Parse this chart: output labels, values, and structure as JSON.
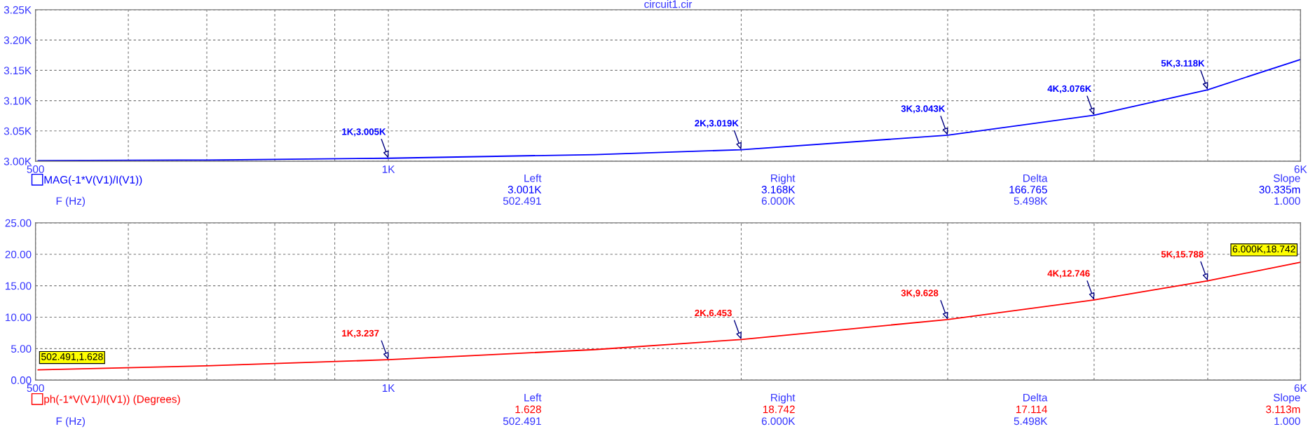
{
  "chart_data": [
    {
      "type": "line",
      "title": "circuit1.cir",
      "log": "x",
      "grid": true,
      "legend": "bottom left",
      "line_style": "solid",
      "marker": "none",
      "x": [
        502.491,
        700,
        1000,
        1500,
        2000,
        3000,
        4000,
        5000,
        6000
      ],
      "series": [
        {
          "name": "MAG(-1*V(V1)/I(V1))",
          "color": "#0000ff",
          "values": [
            3001,
            3002,
            3005,
            3011,
            3019,
            3043,
            3076,
            3118,
            3168
          ]
        }
      ],
      "xlim": [
        500,
        6000
      ],
      "xticks": [
        500,
        {
          "value": 600,
          "label": null
        },
        {
          "value": 700,
          "label": null
        },
        {
          "value": 800,
          "label": null
        },
        {
          "value": 900,
          "label": null
        },
        {
          "value": 1000,
          "label": "1K"
        },
        {
          "value": 2000,
          "label": null
        },
        {
          "value": 3000,
          "label": null
        },
        {
          "value": 4000,
          "label": null
        },
        {
          "value": 5000,
          "label": null
        },
        {
          "value": 6000,
          "label": "6K"
        }
      ],
      "ylim": [
        3000,
        3250
      ],
      "yticks": [
        {
          "value": 3000,
          "label": "3.00K"
        },
        {
          "value": 3050,
          "label": "3.05K"
        },
        {
          "value": 3100,
          "label": "3.10K"
        },
        {
          "value": 3150,
          "label": "3.15K"
        },
        {
          "value": 3200,
          "label": "3.20K"
        },
        {
          "value": 3250,
          "label": "3.25K"
        }
      ],
      "annotations": [
        "Left",
        "Right",
        "Delta",
        "Slope",
        "3.001K",
        "3.168K",
        "166.765",
        "30.335m",
        "F (Hz)",
        "502.491",
        "6.000K",
        "5.498K",
        "1.000",
        {
          "text": "1K,3.005K",
          "x": 1000,
          "y": 3005
        },
        {
          "text": "2K,3.019K",
          "x": 2000,
          "y": 3019
        },
        {
          "text": "3K,3.043K",
          "x": 3000,
          "y": 3043
        },
        {
          "text": "4K,3.076K",
          "x": 4000,
          "y": 3076
        },
        {
          "text": "5K,3.118K",
          "x": 5000,
          "y": 3118
        }
      ]
    },
    {
      "type": "line",
      "log": "x",
      "grid": true,
      "legend": "bottom left",
      "line_style": "solid",
      "marker": "none",
      "x": [
        502.491,
        700,
        1000,
        1500,
        2000,
        3000,
        4000,
        5000,
        6000
      ],
      "series": [
        {
          "name": "ph(-1*V(V1)/I(V1)) (Degrees)",
          "color": "#ff0000",
          "values": [
            1.628,
            2.27,
            3.237,
            4.85,
            6.453,
            9.628,
            12.746,
            15.788,
            18.742
          ]
        }
      ],
      "xlim": [
        500,
        6000
      ],
      "xticks": [
        500,
        {
          "value": 600,
          "label": null
        },
        {
          "value": 700,
          "label": null
        },
        {
          "value": 800,
          "label": null
        },
        {
          "value": 900,
          "label": null
        },
        {
          "value": 1000,
          "label": "1K"
        },
        {
          "value": 2000,
          "label": null
        },
        {
          "value": 3000,
          "label": null
        },
        {
          "value": 4000,
          "label": null
        },
        {
          "value": 5000,
          "label": null
        },
        {
          "value": 6000,
          "label": "6K"
        }
      ],
      "ylim": [
        0,
        25
      ],
      "yticks": [
        {
          "value": 0,
          "label": "0.00"
        },
        {
          "value": 5,
          "label": "5.00"
        },
        {
          "value": 10,
          "label": "10.00"
        },
        {
          "value": 15,
          "label": "15.00"
        },
        {
          "value": 20,
          "label": "20.00"
        },
        {
          "value": 25,
          "label": "25.00"
        }
      ],
      "annotations": [
        "Left",
        "Right",
        "Delta",
        "Slope",
        "1.628",
        "18.742",
        "17.114",
        "3.113m",
        "F (Hz)",
        "502.491",
        "6.000K",
        "5.498K",
        "1.000",
        {
          "text": "502.491,1.628",
          "x": 502.491,
          "y": 1.628
        },
        {
          "text": "1K,3.237",
          "x": 1000,
          "y": 3.237
        },
        {
          "text": "2K,6.453",
          "x": 2000,
          "y": 6.453
        },
        {
          "text": "3K,9.628",
          "x": 3000,
          "y": 9.628
        },
        {
          "text": "4K,12.746",
          "x": 4000,
          "y": 12.746
        },
        {
          "text": "5K,15.788",
          "x": 5000,
          "y": 15.788
        },
        {
          "text": "6.000K,18.742",
          "x": 6000,
          "y": 18.742
        }
      ]
    }
  ]
}
